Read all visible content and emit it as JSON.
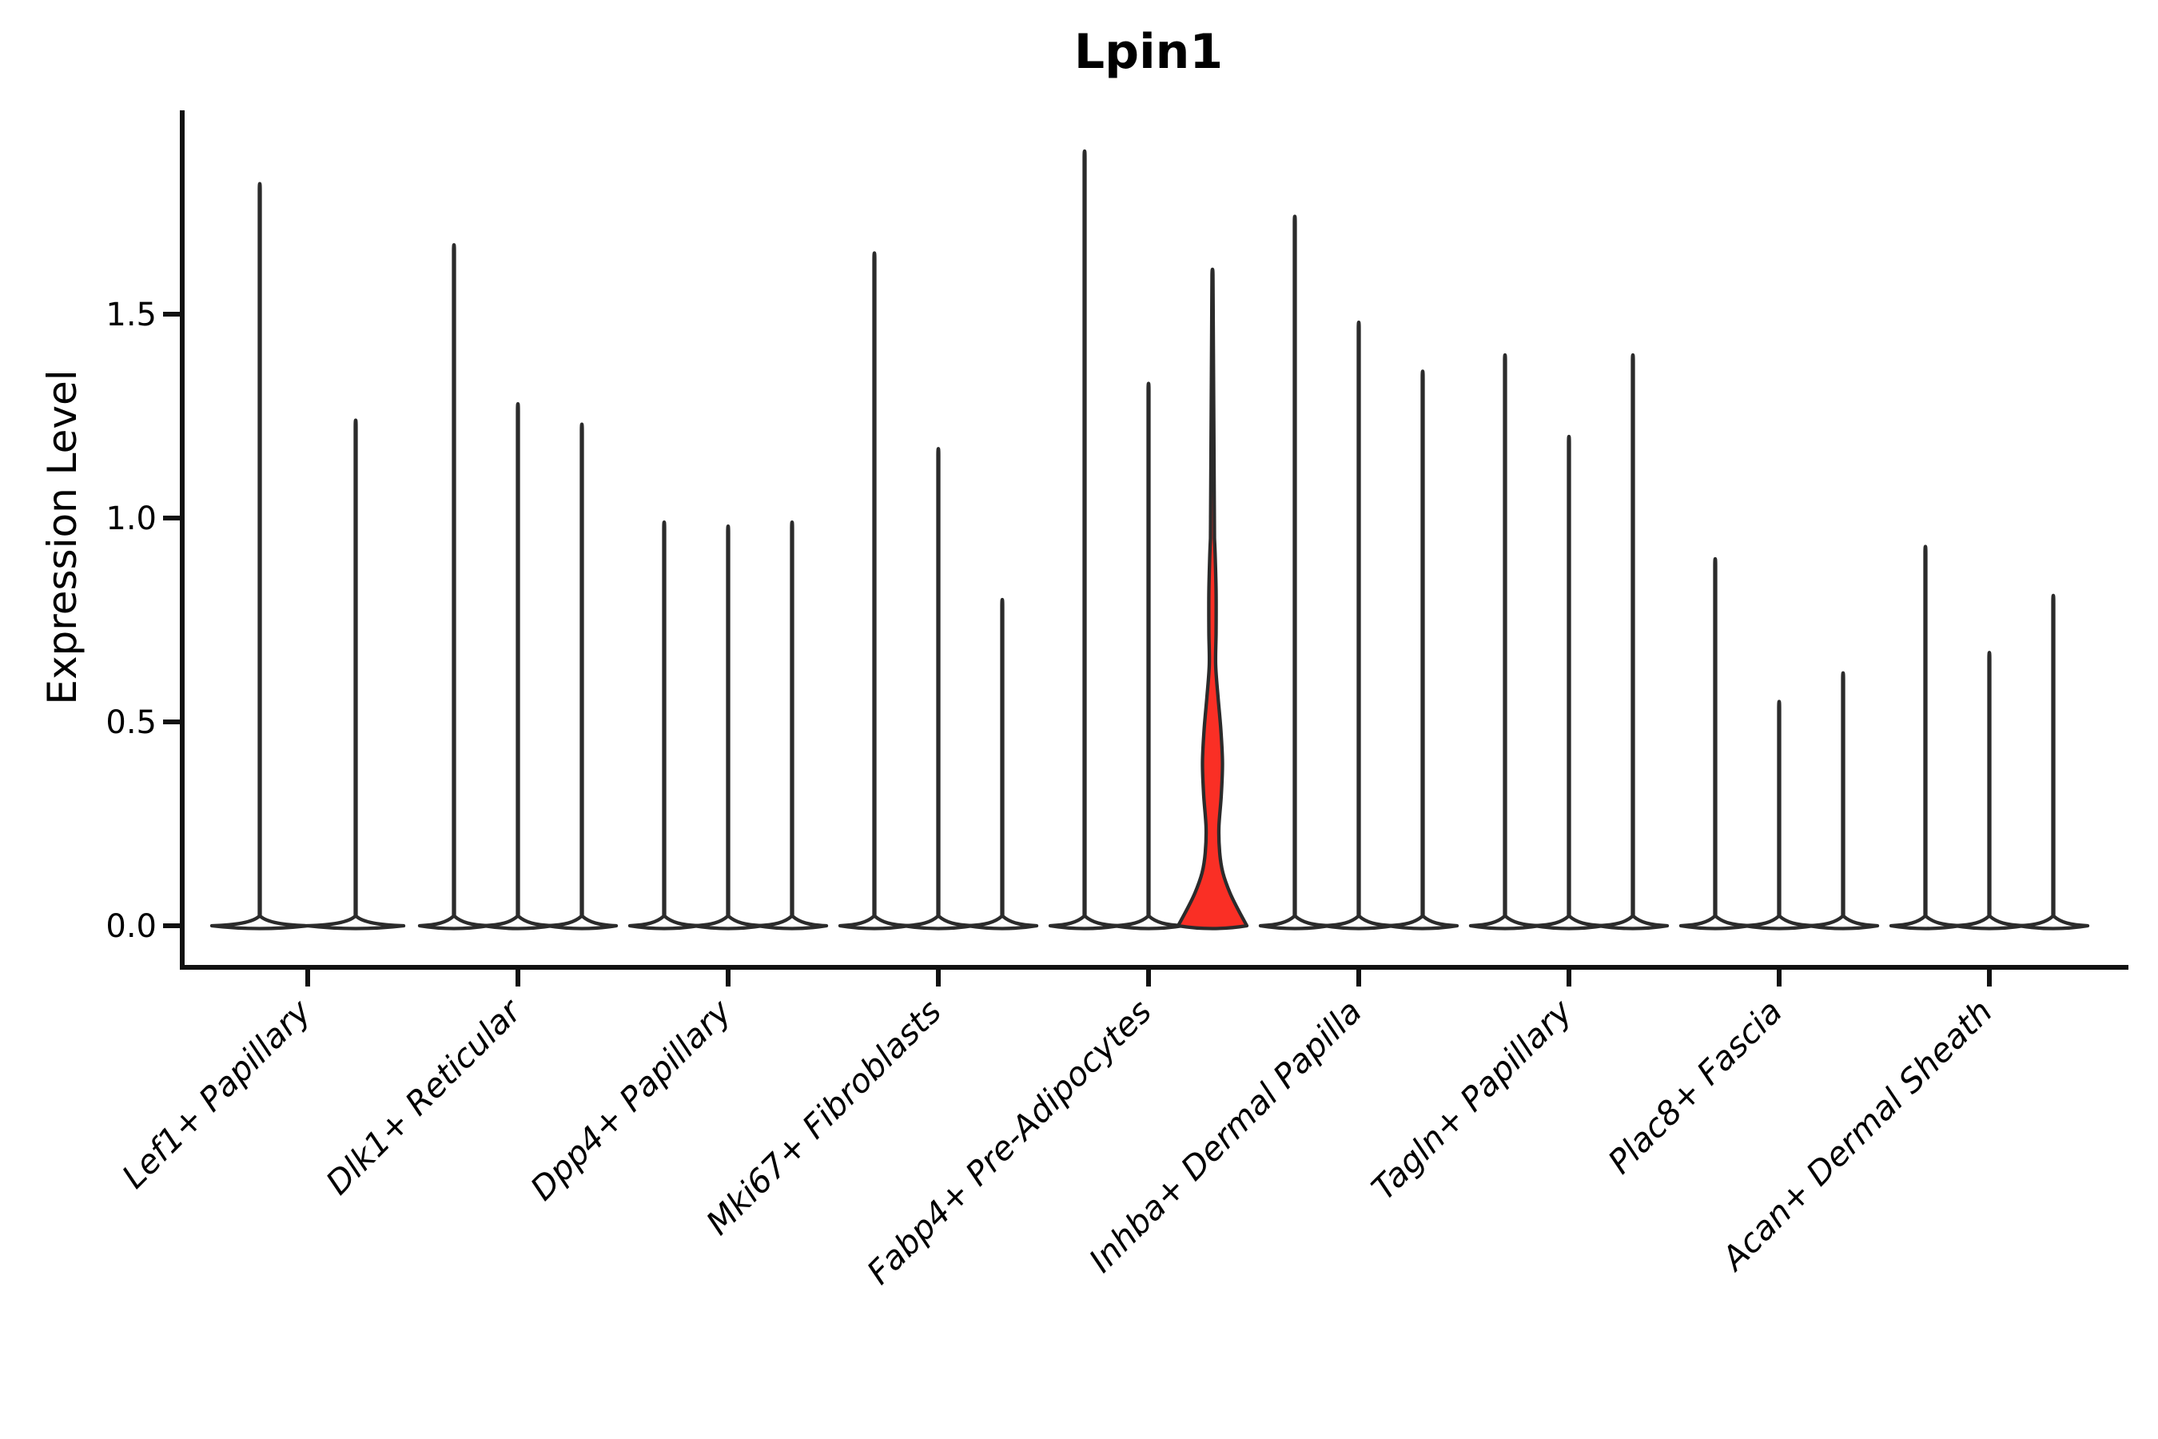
{
  "chart_data": {
    "type": "violin",
    "title": "Lpin1",
    "ylabel": "Expression Level",
    "xlabel": "",
    "ylim": [
      0.0,
      2.0
    ],
    "yticks": [
      0.0,
      0.5,
      1.0,
      1.5
    ],
    "grid": false,
    "legend": "none",
    "categories": [
      "Lef1+ Papillary",
      "Dlk1+ Reticular",
      "Dpp4+ Papillary",
      "Mki67+ Fibroblasts",
      "Fabp4+ Pre-Adipocytes",
      "Inhba+ Dermal Papilla",
      "Tagln+ Papillary",
      "Plac8+ Fascia",
      "Acan+ Dermal Sheath"
    ],
    "groups": [
      {
        "category": "Lef1+ Papillary",
        "violin_max_expression": [
          1.82,
          1.24
        ]
      },
      {
        "category": "Dlk1+ Reticular",
        "violin_max_expression": [
          1.67,
          1.28,
          1.23
        ]
      },
      {
        "category": "Dpp4+ Papillary",
        "violin_max_expression": [
          0.99,
          0.98,
          0.99
        ]
      },
      {
        "category": "Mki67+ Fibroblasts",
        "violin_max_expression": [
          1.65,
          1.17,
          0.8
        ]
      },
      {
        "category": "Fabp4+ Pre-Adipocytes",
        "violin_max_expression": [
          1.9,
          1.33,
          1.61
        ],
        "highlight_index": 2
      },
      {
        "category": "Inhba+ Dermal Papilla",
        "violin_max_expression": [
          1.74,
          1.48,
          1.36
        ]
      },
      {
        "category": "Tagln+ Papillary",
        "violin_max_expression": [
          1.4,
          1.2,
          1.4
        ]
      },
      {
        "category": "Plac8+ Fascia",
        "violin_max_expression": [
          0.9,
          0.55,
          0.62
        ]
      },
      {
        "category": "Acan+ Dermal Sheath",
        "violin_max_expression": [
          0.93,
          0.67,
          0.81
        ]
      }
    ],
    "highlight": {
      "category": "Fabp4+ Pre-Adipocytes",
      "violin_index": 2,
      "max_expression": 1.61,
      "body_top_expression": 0.95,
      "profile_value_halfwidth": [
        [
          0.0,
          43
        ],
        [
          0.04,
          32
        ],
        [
          0.08,
          22
        ],
        [
          0.13,
          13
        ],
        [
          0.18,
          9
        ],
        [
          0.24,
          8
        ],
        [
          0.32,
          11
        ],
        [
          0.4,
          12.5
        ],
        [
          0.48,
          10.5
        ],
        [
          0.56,
          7
        ],
        [
          0.64,
          4
        ],
        [
          0.72,
          4.5
        ],
        [
          0.82,
          4.5
        ],
        [
          0.9,
          3.5
        ],
        [
          0.95,
          2.5
        ]
      ]
    },
    "style": {
      "outline_color": "#2b2b2b",
      "violin_fill": "#ffffff",
      "highlight_fill": "#fa2f25",
      "axis_color": "#111111",
      "background": "#ffffff"
    }
  }
}
